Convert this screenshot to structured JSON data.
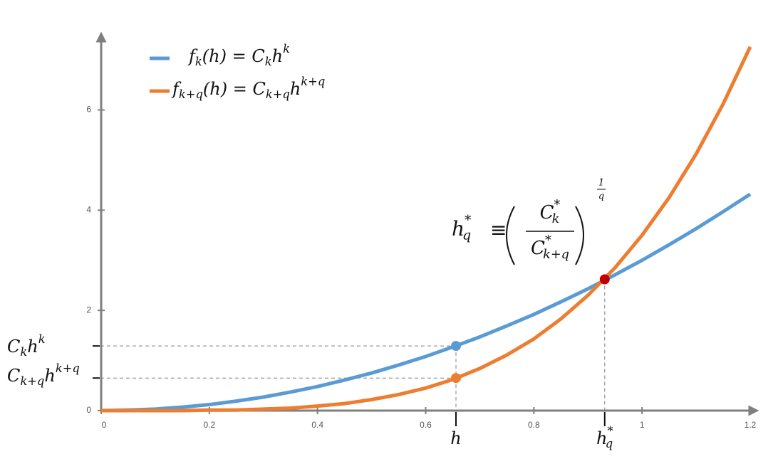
{
  "chart_data": {
    "type": "line",
    "x": [
      0,
      0.05,
      0.1,
      0.15,
      0.2,
      0.25,
      0.3,
      0.35,
      0.4,
      0.45,
      0.5,
      0.55,
      0.6,
      0.65,
      0.7,
      0.75,
      0.8,
      0.85,
      0.9,
      0.95,
      1.0,
      1.05,
      1.1,
      1.15,
      1.2
    ],
    "series": [
      {
        "name": [
          {
            "t": "f"
          },
          {
            "sub": "k"
          },
          {
            "t": "(h) = "
          },
          {
            "t": "C"
          },
          {
            "sub": "k"
          },
          {
            "t": "h"
          },
          {
            "sup": "k"
          }
        ],
        "color": "#5b9bd5",
        "values": [
          0,
          0.01,
          0.03,
          0.07,
          0.12,
          0.19,
          0.27,
          0.37,
          0.48,
          0.61,
          0.75,
          0.91,
          1.08,
          1.27,
          1.47,
          1.69,
          1.92,
          2.17,
          2.43,
          2.71,
          3.0,
          3.31,
          3.63,
          3.97,
          4.32
        ]
      },
      {
        "name": [
          {
            "t": "f"
          },
          {
            "sub": "k+q"
          },
          {
            "t": "(h) = "
          },
          {
            "t": "C"
          },
          {
            "sub": "k+q"
          },
          {
            "t": "h"
          },
          {
            "sup": "k+q"
          }
        ],
        "color": "#ed7d31",
        "values": [
          0,
          0,
          0,
          0,
          0.01,
          0.01,
          0.03,
          0.05,
          0.09,
          0.14,
          0.22,
          0.32,
          0.45,
          0.62,
          0.84,
          1.11,
          1.43,
          1.83,
          2.3,
          2.85,
          3.5,
          4.25,
          5.12,
          6.12,
          7.26
        ]
      }
    ],
    "points": [
      {
        "x": 0.656,
        "y": 1.29,
        "color": "#5b9bd5"
      },
      {
        "x": 0.656,
        "y": 0.65,
        "color": "#ed7d31"
      },
      {
        "x": 0.931,
        "y": 2.62,
        "color": "#c00000"
      }
    ],
    "x_marker_labels": [
      [
        {
          "t": "h"
        }
      ],
      [
        {
          "t": "h"
        },
        {
          "sup": "*"
        },
        {
          "sub": "q"
        }
      ]
    ],
    "y_marker_labels": [
      [
        {
          "t": "C"
        },
        {
          "sub": "k"
        },
        {
          "t": "h"
        },
        {
          "sup": "k"
        }
      ],
      [
        {
          "t": "C"
        },
        {
          "sub": "k+q"
        },
        {
          "t": "h"
        },
        {
          "sup": "k+q"
        }
      ]
    ],
    "formula": {
      "lhs": [
        {
          "t": "h"
        },
        {
          "sup": "*"
        },
        {
          "sub": "q"
        }
      ],
      "op": "≡",
      "num": [
        {
          "t": "C"
        },
        {
          "sup": "*"
        },
        {
          "sub": "k"
        }
      ],
      "den": [
        {
          "t": "C"
        },
        {
          "sup": "*"
        },
        {
          "sub": "k+q"
        }
      ],
      "exp_num": "1",
      "exp_den": "q"
    },
    "xlim": [
      0,
      1.2
    ],
    "ylim": [
      0,
      7.2
    ],
    "xticks": [
      0,
      0.2,
      0.4,
      0.6,
      0.8,
      1,
      1.2
    ],
    "yticks": [
      0,
      2,
      4,
      6
    ]
  }
}
